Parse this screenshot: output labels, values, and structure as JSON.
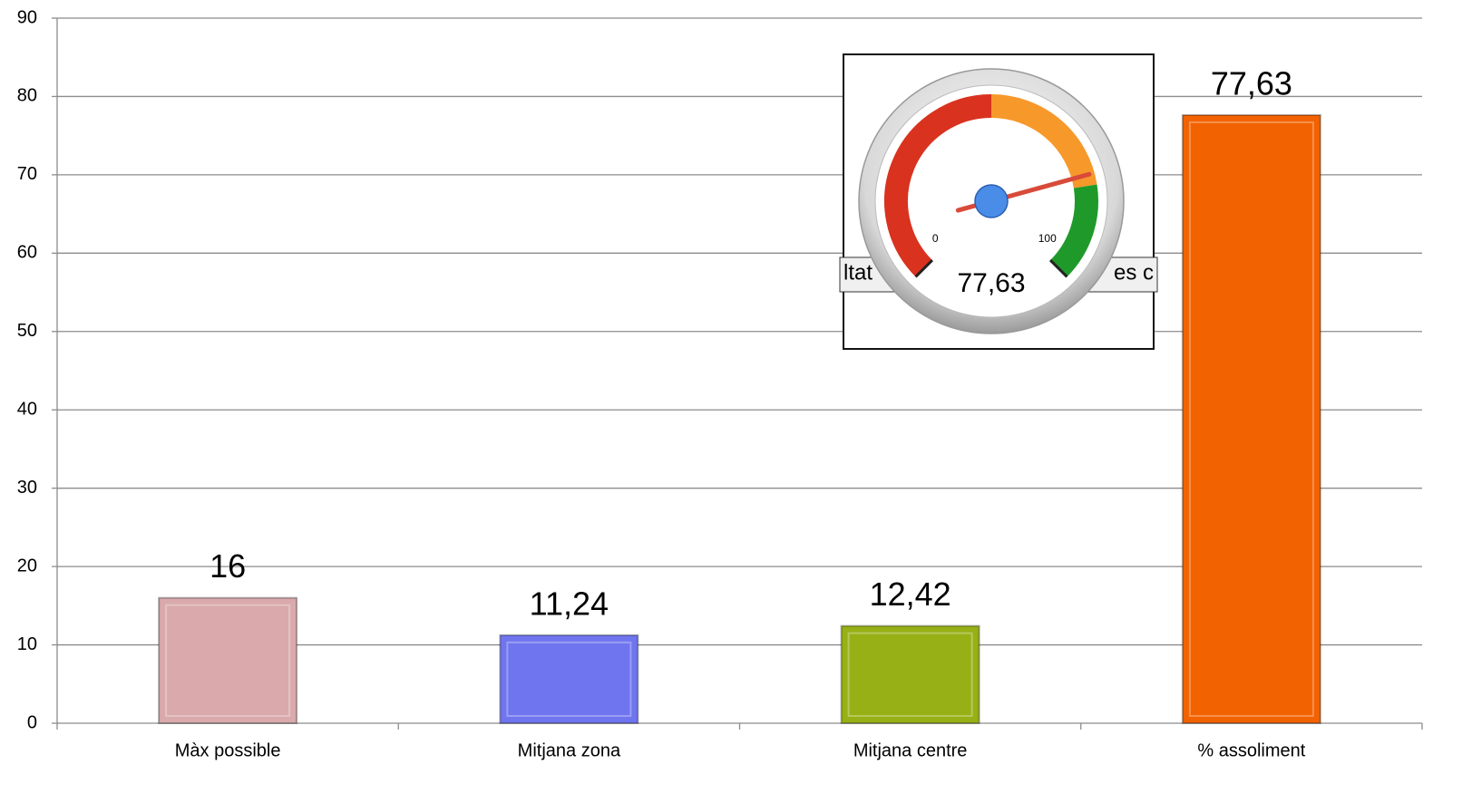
{
  "chart_data": {
    "type": "bar",
    "categories": [
      "Màx possible",
      "Mitjana zona",
      "Mitjana centre",
      "% assoliment"
    ],
    "values": [
      16,
      11.24,
      12.42,
      77.63
    ],
    "value_labels": [
      "16",
      "11,24",
      "12,42",
      "77,63"
    ],
    "colors": [
      "#d9a9ab",
      "#6f75ee",
      "#97b015",
      "#f26200"
    ],
    "ylim": [
      0,
      90
    ],
    "yticks": [
      0,
      10,
      20,
      30,
      40,
      50,
      60,
      70,
      80,
      90
    ],
    "grid": true,
    "inset": {
      "type": "gauge",
      "value": 77.63,
      "value_label": "77,63",
      "range": [
        0,
        100
      ],
      "ticks": [
        0,
        100
      ],
      "bands": [
        {
          "from": 0,
          "to": 50,
          "color": "#d9321f"
        },
        {
          "from": 50,
          "to": 80,
          "color": "#f7982a"
        },
        {
          "from": 80,
          "to": 100,
          "color": "#1f9a2a"
        }
      ],
      "background_text": [
        "ltat",
        "es c"
      ]
    }
  }
}
